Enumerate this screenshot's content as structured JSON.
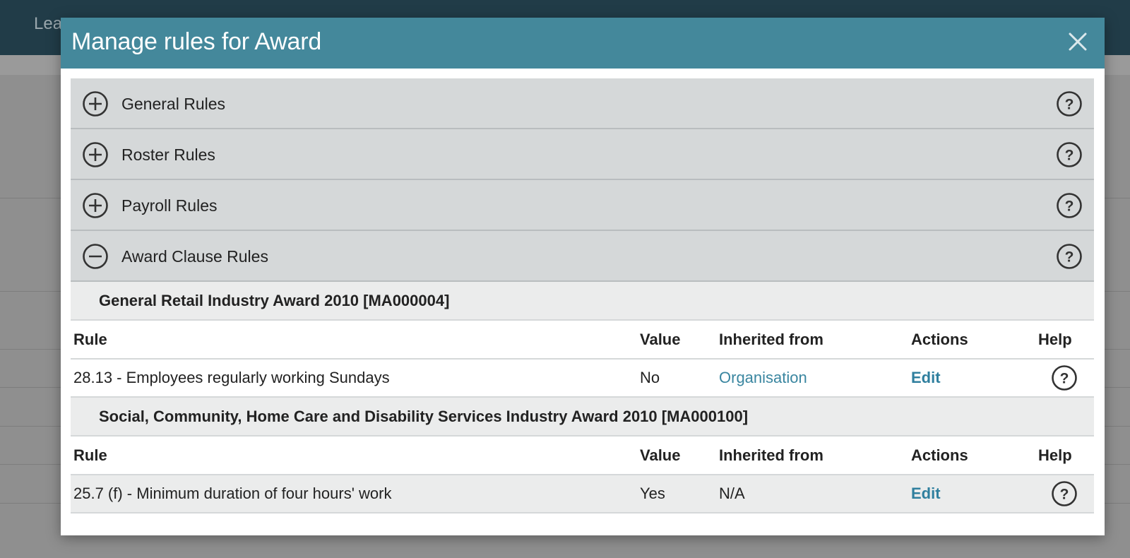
{
  "background": {
    "nav_items": [
      "Lea",
      "",
      ""
    ]
  },
  "modal": {
    "title": "Manage rules for Award",
    "sections": [
      {
        "label": "General Rules",
        "expanded": false
      },
      {
        "label": "Roster Rules",
        "expanded": false
      },
      {
        "label": "Payroll Rules",
        "expanded": false
      },
      {
        "label": "Award Clause Rules",
        "expanded": true
      }
    ],
    "awards": [
      {
        "title": "General Retail Industry Award 2010 [MA000004]",
        "columns": [
          "Rule",
          "Value",
          "Inherited from",
          "Actions",
          "Help"
        ],
        "rows": [
          {
            "rule": "28.13 - Employees regularly working Sundays",
            "value": "No",
            "inherited": "Organisation",
            "action": "Edit"
          }
        ]
      },
      {
        "title": "Social, Community, Home Care and Disability Services Industry Award 2010 [MA000100]",
        "columns": [
          "Rule",
          "Value",
          "Inherited from",
          "Actions",
          "Help"
        ],
        "rows": [
          {
            "rule": "25.7 (f) - Minimum duration of four hours' work",
            "value": "Yes",
            "inherited": "N/A",
            "action": "Edit"
          }
        ]
      }
    ]
  },
  "colors": {
    "header": "#44889b",
    "section_bg": "#d5d8d9",
    "link": "#3a86a0"
  }
}
